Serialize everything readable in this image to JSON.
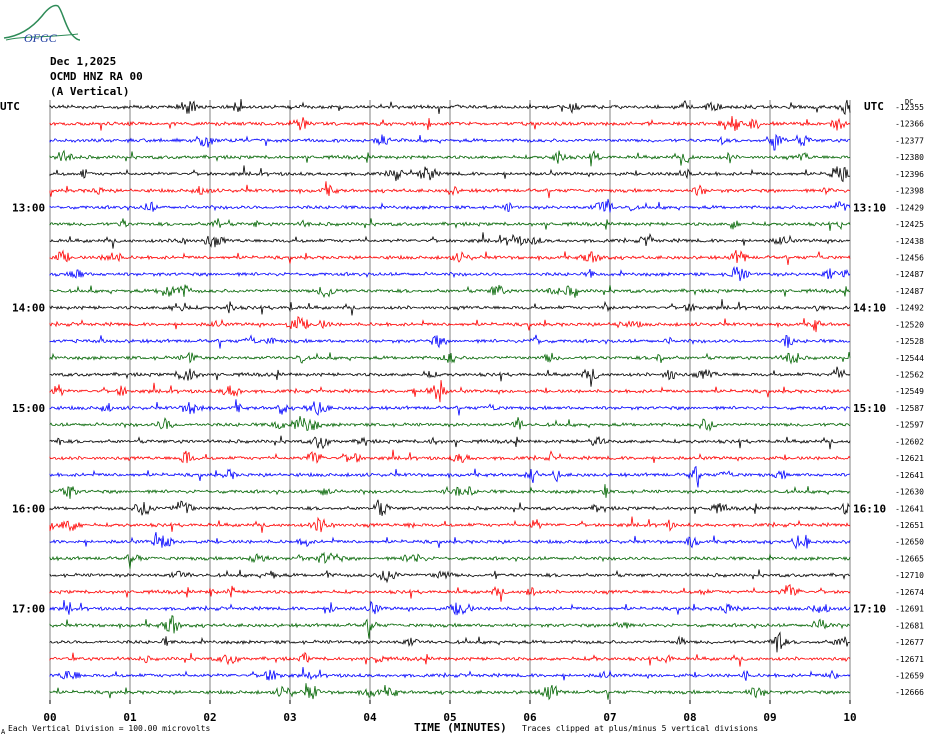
{
  "header": {
    "logo_text": "OFGC",
    "date": "Dec 1,2025",
    "station": "OCMD HNZ RA 00",
    "component": "(A Vertical)",
    "utc_left": "UTC",
    "utc_right": "UTC",
    "corner_tag": "DC"
  },
  "footer": {
    "scale_note": "Each Vertical Division =  100.00 microvolts",
    "clip_note": "Traces clipped at plus/minus 5 vertical divisions",
    "corner_mark": "A"
  },
  "colors": {
    "black": "#000000",
    "red": "#ff0000",
    "blue": "#0000ff",
    "green": "#006400",
    "grid": "#808080",
    "logo": "#2e8b57",
    "logo_text": "#1e3ca0"
  },
  "chart_data": {
    "type": "line",
    "xlabel": "TIME (MINUTES)",
    "x_ticks": [
      "00",
      "01",
      "02",
      "03",
      "04",
      "05",
      "06",
      "07",
      "08",
      "09",
      "10"
    ],
    "xlim": [
      0,
      10
    ],
    "trace_colors": [
      "black",
      "red",
      "blue",
      "green"
    ],
    "left_labels": [
      {
        "row": 6,
        "text": "13:00"
      },
      {
        "row": 12,
        "text": "14:00"
      },
      {
        "row": 18,
        "text": "15:00"
      },
      {
        "row": 24,
        "text": "16:00"
      },
      {
        "row": 30,
        "text": "17:00"
      }
    ],
    "right_labels": [
      {
        "row": 12,
        "text": "14:10"
      },
      {
        "row": 18,
        "text": "15:10"
      },
      {
        "row": 24,
        "text": "16:10"
      },
      {
        "row": 30,
        "text": "17:10"
      },
      {
        "row": 6,
        "text": "13:10"
      }
    ],
    "trace_offsets": [
      "-12355",
      "-12366",
      "-12377",
      "-12380",
      "-12396",
      "-12398",
      "-12429",
      "-12425",
      "-12438",
      "-12456",
      "-12487",
      "-12487",
      "-12492",
      "-12520",
      "-12528",
      "-12544",
      "-12562",
      "-12549",
      "-12587",
      "-12597",
      "-12602",
      "-12621",
      "-12641",
      "-12630",
      "-12641",
      "-12651",
      "-12650",
      "-12665",
      "-12710",
      "-12674",
      "-12691",
      "-12681",
      "-12677",
      "-12671",
      "-12659",
      "-12666"
    ]
  }
}
